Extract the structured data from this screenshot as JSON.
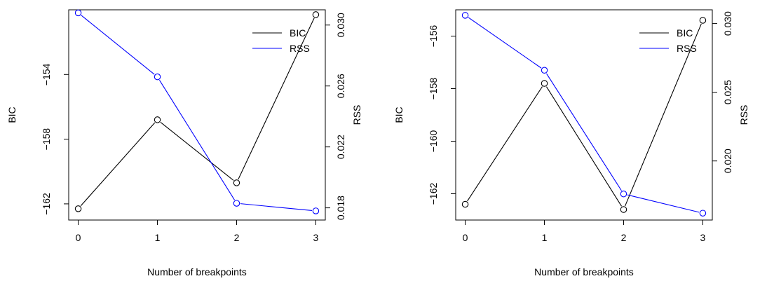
{
  "chart_data": [
    {
      "type": "line",
      "x": [
        0,
        1,
        2,
        3
      ],
      "xlabel": "Number of breakpoints",
      "xlim": [
        0,
        3
      ],
      "xticks": [
        "0",
        "1",
        "2",
        "3"
      ],
      "ylabel": "BIC",
      "ylim": [
        -163,
        -150
      ],
      "yticks": [
        "-162",
        "-158",
        "-154"
      ],
      "y2label": "RSS",
      "y2lim": [
        0.0172,
        0.031
      ],
      "y2ticks": [
        "0.018",
        "0.022",
        "0.026",
        "0.030"
      ],
      "legend": {
        "placement": "top-right"
      },
      "series": [
        {
          "name": "BIC",
          "axis": "left",
          "color": "#000000",
          "values": [
            -162.3,
            -156.8,
            -160.7,
            -150.3
          ]
        },
        {
          "name": "RSS",
          "axis": "right",
          "color": "#0000ff",
          "values": [
            0.0308,
            0.0266,
            0.0183,
            0.0178
          ]
        }
      ]
    },
    {
      "type": "line",
      "x": [
        0,
        1,
        2,
        3
      ],
      "xlabel": "Number of breakpoints",
      "xlim": [
        0,
        3
      ],
      "xticks": [
        "0",
        "1",
        "2",
        "3"
      ],
      "ylabel": "BIC",
      "ylim": [
        -163,
        -155
      ],
      "yticks": [
        "-162",
        "-160",
        "-158",
        "-156"
      ],
      "y2label": "RSS",
      "y2lim": [
        0.0157,
        0.031
      ],
      "y2ticks": [
        "0.020",
        "0.025",
        "0.030"
      ],
      "legend": {
        "placement": "top-right"
      },
      "series": [
        {
          "name": "BIC",
          "axis": "left",
          "color": "#000000",
          "values": [
            -162.4,
            -157.8,
            -162.6,
            -155.4
          ]
        },
        {
          "name": "RSS",
          "axis": "right",
          "color": "#0000ff",
          "values": [
            0.0306,
            0.0266,
            0.0176,
            0.0162
          ]
        }
      ]
    }
  ]
}
